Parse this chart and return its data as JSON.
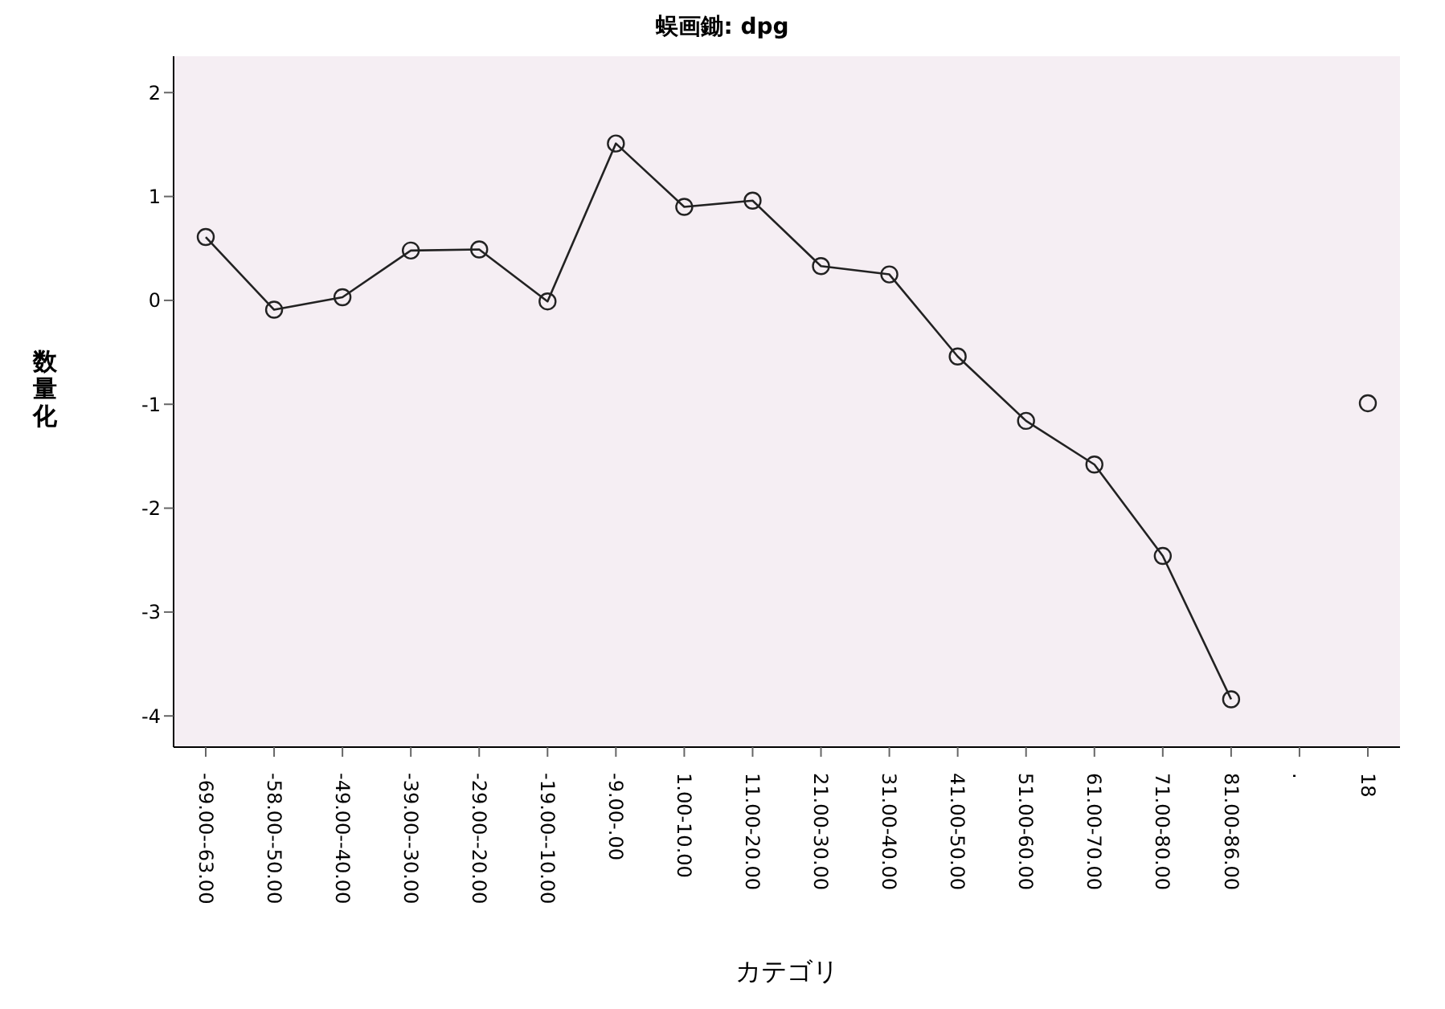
{
  "chart_data": {
    "type": "line",
    "title": "蜈画鋤: dpg",
    "xlabel": "カテゴリ",
    "ylabel": "数量化",
    "categories": [
      "-69.00--63.00",
      "-58.00--50.00",
      "-49.00--40.00",
      "-39.00--30.00",
      "-29.00--20.00",
      "-19.00--10.00",
      "-9.00-.00",
      "1.00-10.00",
      "11.00-20.00",
      "21.00-30.00",
      "31.00-40.00",
      "41.00-50.00",
      "51.00-60.00",
      "61.00-70.00",
      "71.00-80.00",
      "81.00-86.00",
      ".",
      "18"
    ],
    "series": [
      {
        "color": "#222222",
        "values": [
          0.61,
          -0.09,
          0.03,
          0.48,
          0.49,
          -0.01,
          1.51,
          0.9,
          0.96,
          0.33,
          0.25,
          -0.54,
          -1.16,
          -1.58,
          -2.46,
          -3.84,
          null,
          -0.99
        ]
      }
    ],
    "ylim": [
      -4.3,
      2.35
    ],
    "yticks": [
      -4,
      -3,
      -2,
      -1,
      0,
      1,
      2
    ],
    "grid": false,
    "marker": "circle",
    "line_style": "solid"
  }
}
